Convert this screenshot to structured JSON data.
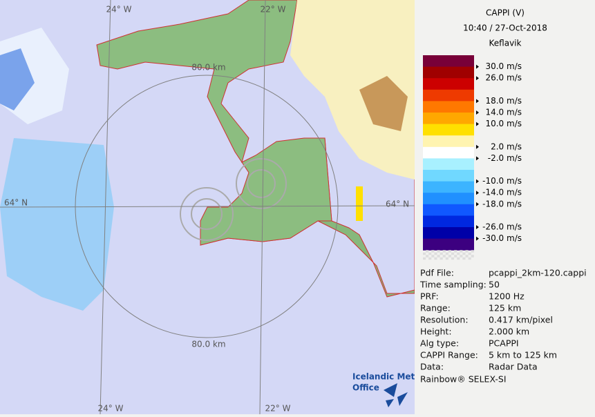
{
  "map": {
    "labels": {
      "lon_top_left": "24° W",
      "lon_top_right": "22° W",
      "lon_bottom_left": "24° W",
      "lon_bottom_right": "22° W",
      "lat_left": "64° N",
      "lat_right": "64° N",
      "range_top": "80.0 km",
      "range_bottom": "80.0 km"
    },
    "logo": {
      "line1": "Icelandic Met",
      "line2": "Office"
    }
  },
  "panel": {
    "title": [
      "CAPPI (V)",
      "10:40 / 27-Oct-2018",
      "Keflavik"
    ],
    "legend": {
      "colors": [
        "#780038",
        "#a00000",
        "#cc0000",
        "#ee3a00",
        "#ff7800",
        "#ffa800",
        "#ffe000",
        "#fff4b0",
        "#ffffff",
        "#a8f0ff",
        "#70d8ff",
        "#3cb4ff",
        "#2090ff",
        "#1058ff",
        "#0028e0",
        "#0000a8",
        "#3c0080"
      ],
      "labels": [
        "30.0 m/s",
        "26.0 m/s",
        "18.0 m/s",
        "14.0 m/s",
        "10.0 m/s",
        "2.0 m/s",
        "-2.0 m/s",
        "-10.0 m/s",
        "-14.0 m/s",
        "-18.0 m/s",
        "-26.0 m/s",
        "-30.0 m/s"
      ]
    },
    "info": [
      [
        "Pdf File:",
        "pcappi_2km-120.cappi"
      ],
      [
        "Time sampling:",
        "50"
      ],
      [
        "PRF:",
        "1200 Hz"
      ],
      [
        "Range:",
        "125 km"
      ],
      [
        "Resolution:",
        "0.417 km/pixel"
      ],
      [
        "Height:",
        "2.000 km"
      ],
      [
        "Alg type:",
        "PCAPPI"
      ],
      [
        "CAPPI Range:",
        "5 km to 125 km"
      ],
      [
        "Data:",
        "Radar Data"
      ]
    ],
    "footer": "Rainbow® SELEX-SI"
  }
}
